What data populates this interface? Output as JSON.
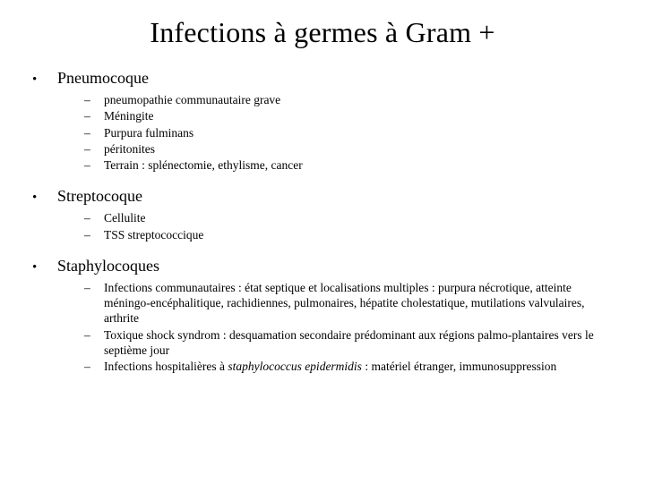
{
  "title": "Infections à germes à Gram +",
  "bullet_marker": "•",
  "dash_marker": "–",
  "sections": {
    "s0": {
      "label": "Pneumocoque",
      "items": [
        "pneumopathie communautaire grave",
        "Méningite",
        "Purpura fulminans",
        "péritonites",
        "Terrain : splénectomie, ethylisme, cancer"
      ]
    },
    "s1": {
      "label": "Streptocoque",
      "items": [
        "Cellulite",
        "TSS streptococcique"
      ]
    },
    "s2": {
      "label": "Staphylocoques",
      "items_html": [
        {
          "pre": "Infections communautaires : état septique et localisations multiples : purpura nécrotique, atteinte méningo-encéphalitique, rachidiennes, pulmonaires, hépatite cholestatique, mutilations valvulaires, arthrite"
        },
        {
          "pre": "Toxique shock syndrom : desquamation secondaire prédominant aux régions palmo-plantaires vers le septième jour"
        },
        {
          "pre": "Infections hospitalières à ",
          "italic": "staphylococcus epidermidis",
          "post": " : matériel étranger, immunosuppression"
        }
      ]
    }
  },
  "colors": {
    "background": "#ffffff",
    "text": "#000000"
  },
  "typography": {
    "title_fontsize": 32,
    "section_fontsize": 18,
    "item_fontsize": 13.5,
    "family": "Garamond / Times"
  }
}
